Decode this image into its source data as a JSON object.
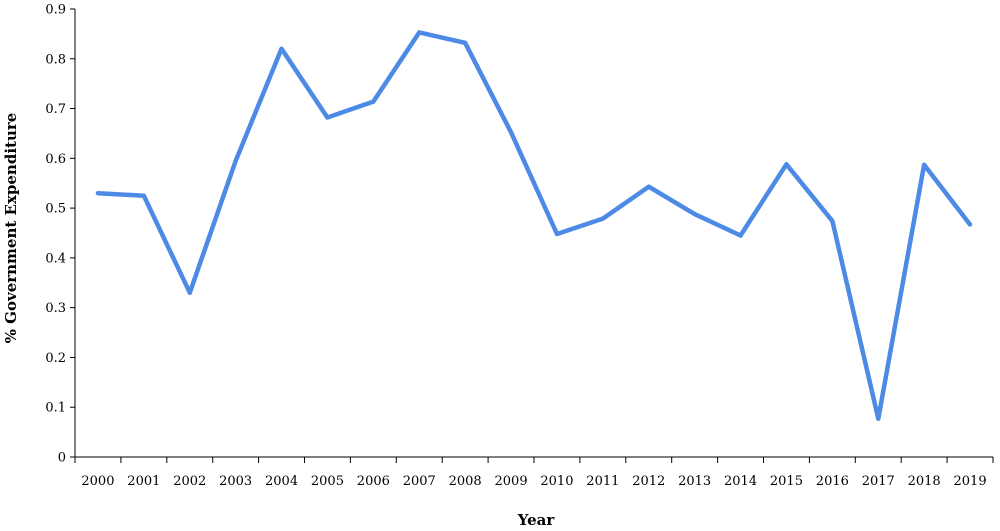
{
  "chart_data": {
    "type": "line",
    "title": "",
    "xlabel": "Year",
    "ylabel": "% Government Expenditure",
    "ylim": [
      0,
      0.9
    ],
    "yticks": [
      "0",
      "0.1",
      "0.2",
      "0.3",
      "0.4",
      "0.5",
      "0.6",
      "0.7",
      "0.8",
      "0.9"
    ],
    "grid": false,
    "legend": "none",
    "categories": [
      "2000",
      "2001",
      "2002",
      "2003",
      "2004",
      "2005",
      "2006",
      "2007",
      "2008",
      "2009",
      "2010",
      "2011",
      "2012",
      "2013",
      "2014",
      "2015",
      "2016",
      "2017",
      "2018",
      "2019"
    ],
    "series": [
      {
        "color": "#4c8ae6",
        "values": [
          0.53,
          0.525,
          0.33,
          0.595,
          0.82,
          0.682,
          0.714,
          0.853,
          0.832,
          0.652,
          0.448,
          0.479,
          0.543,
          0.488,
          0.445,
          0.588,
          0.474,
          0.077,
          0.587,
          0.467
        ]
      }
    ]
  }
}
